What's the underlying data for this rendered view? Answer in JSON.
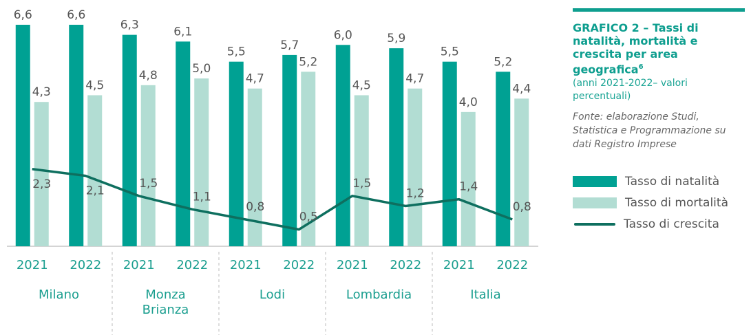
{
  "chart_data": {
    "type": "bar_line",
    "title": "GRAFICO 2 – Tassi di natalità, mortalità e crescita per area geografica",
    "title_note": "6",
    "subtitle": "(anni 2021-2022– valori percentuali)",
    "source": "Fonte: elaborazione Studi, Statistica e Programmazione su dati Registro Imprese",
    "categories": [
      "2021",
      "2022",
      "2021",
      "2022",
      "2021",
      "2022",
      "2021",
      "2022",
      "2021",
      "2022"
    ],
    "groups": [
      "Milano",
      "Monza Brianza",
      "Lodi",
      "Lombardia",
      "Italia"
    ],
    "series": [
      {
        "name": "Tasso di natalità",
        "kind": "bar",
        "color": "#00a193",
        "values": [
          6.6,
          6.6,
          6.3,
          6.1,
          5.5,
          5.7,
          6.0,
          5.9,
          5.5,
          5.2
        ],
        "value_labels": [
          "6,6",
          "6,6",
          "6,3",
          "6,1",
          "5,5",
          "5,7",
          "6,0",
          "5,9",
          "5,5",
          "5,2"
        ]
      },
      {
        "name": "Tasso di mortalità",
        "kind": "bar",
        "color": "#b2ddd3",
        "values": [
          4.3,
          4.5,
          4.8,
          5.0,
          4.7,
          5.2,
          4.5,
          4.7,
          4.0,
          4.4
        ],
        "value_labels": [
          "4,3",
          "4,5",
          "4,8",
          "5,0",
          "4,7",
          "5,2",
          "4,5",
          "4,7",
          "4,0",
          "4,4"
        ]
      },
      {
        "name": "Tasso di crescita",
        "kind": "line",
        "color": "#0e6f5f",
        "values": [
          2.3,
          2.1,
          1.5,
          1.1,
          0.8,
          0.5,
          1.5,
          1.2,
          1.4,
          0.8
        ],
        "value_labels": [
          "2,3",
          "2,1",
          "1,5",
          "1,1",
          "0,8",
          "0,5",
          "1,5",
          "1,2",
          "1,4",
          "0,8"
        ]
      }
    ]
  }
}
